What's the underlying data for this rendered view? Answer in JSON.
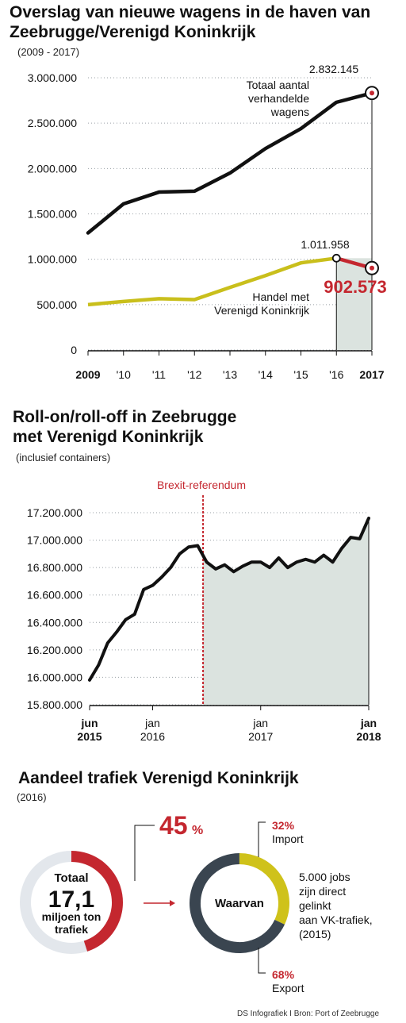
{
  "colors": {
    "black": "#111111",
    "yellow": "#c9bf1c",
    "red": "#c4272f",
    "fill_gray": "#dbe3df",
    "donut_gray": "#e3e7ec",
    "donut_dark": "#3a4550",
    "donut_yellow": "#cfc21a"
  },
  "chart_data": [
    {
      "type": "line",
      "title": "Overslag van nieuwe wagens in de haven van Zeebrugge/Verenigd Koninkrijk",
      "subtitle": "(2009 - 2017)",
      "x": [
        "2009",
        "'10",
        "'11",
        "'12",
        "'13",
        "'14",
        "'15",
        "'16",
        "2017"
      ],
      "ylim": [
        0,
        3000000
      ],
      "y_ticks": [
        "3.000.000",
        "2.500.000",
        "2.000.000",
        "1.500.000",
        "1.000.000",
        "500.000",
        "0"
      ],
      "grid": "horizontal dotted",
      "series": [
        {
          "name": "Totaal aantal verhandelde wagens",
          "values": [
            1290000,
            1610000,
            1740000,
            1750000,
            1950000,
            2220000,
            2440000,
            2730000,
            2832145
          ]
        },
        {
          "name": "Handel met Verenigd Koninkrijk",
          "values": [
            500000,
            535000,
            565000,
            555000,
            690000,
            820000,
            960000,
            1011958,
            902573
          ]
        }
      ],
      "annotations": {
        "total_end_value": "2.832.145",
        "total_label_lines": [
          "Totaal aantal",
          "verhandelde",
          "wagens"
        ],
        "uk_2016_value": "1.011.958",
        "uk_2017_value": "902.573",
        "uk_label_lines": [
          "Handel met",
          "Verenigd Koninkrijk"
        ]
      }
    },
    {
      "type": "line",
      "title": "Roll-on/roll-off in Zeebrugge met Verenigd Koninkrijk",
      "title_lines": [
        "Roll-on/roll-off in Zeebrugge",
        "met Verenigd Koninkrijk"
      ],
      "subtitle": "(inclusief containers)",
      "ylim": [
        15800000,
        17200000
      ],
      "y_ticks": [
        "17.200.000",
        "17.000.000",
        "16.800.000",
        "16.600.000",
        "16.400.000",
        "16.200.000",
        "16.000.000",
        "15.800.000"
      ],
      "x_ticks": [
        {
          "line1": "jun",
          "line2": "2015",
          "bold": true
        },
        {
          "line1": "jan",
          "line2": "2016",
          "bold": false
        },
        {
          "line1": "jan",
          "line2": "2017",
          "bold": false
        },
        {
          "line1": "jan",
          "line2": "2018",
          "bold": true
        }
      ],
      "grid": "horizontal dotted",
      "event_label": "Brexit-referendum",
      "series": [
        {
          "values": [
            15980000,
            16090000,
            16250000,
            16330000,
            16420000,
            16460000,
            16640000,
            16670000,
            16730000,
            16800000,
            16900000,
            16950000,
            16960000,
            16840000,
            16790000,
            16820000,
            16770000,
            16810000,
            16840000,
            16840000,
            16800000,
            16870000,
            16800000,
            16840000,
            16860000,
            16840000,
            16890000,
            16840000,
            16940000,
            17020000,
            17010000,
            17160000
          ]
        }
      ]
    },
    {
      "type": "pie",
      "title": "Aandeel trafiek Verenigd Koninkrijk",
      "subtitle": "(2016)",
      "donut1": {
        "label_lines": [
          "Totaal",
          "17,1",
          "miljoen ton",
          "trafiek"
        ],
        "share_value": 45,
        "share_text": "45",
        "share_unit": "%"
      },
      "donut2": {
        "center_label": "Waarvan",
        "slices": [
          {
            "label": "Import",
            "value": 32,
            "text": "32%"
          },
          {
            "label": "Export",
            "value": 68,
            "text": "68%"
          }
        ]
      },
      "note_lines": [
        "5.000 jobs",
        "zijn direct",
        "gelinkt",
        "aan VK-trafiek,",
        "(2015)"
      ]
    }
  ],
  "footer": "DS Infografiek I Bron: Port of Zeebrugge"
}
